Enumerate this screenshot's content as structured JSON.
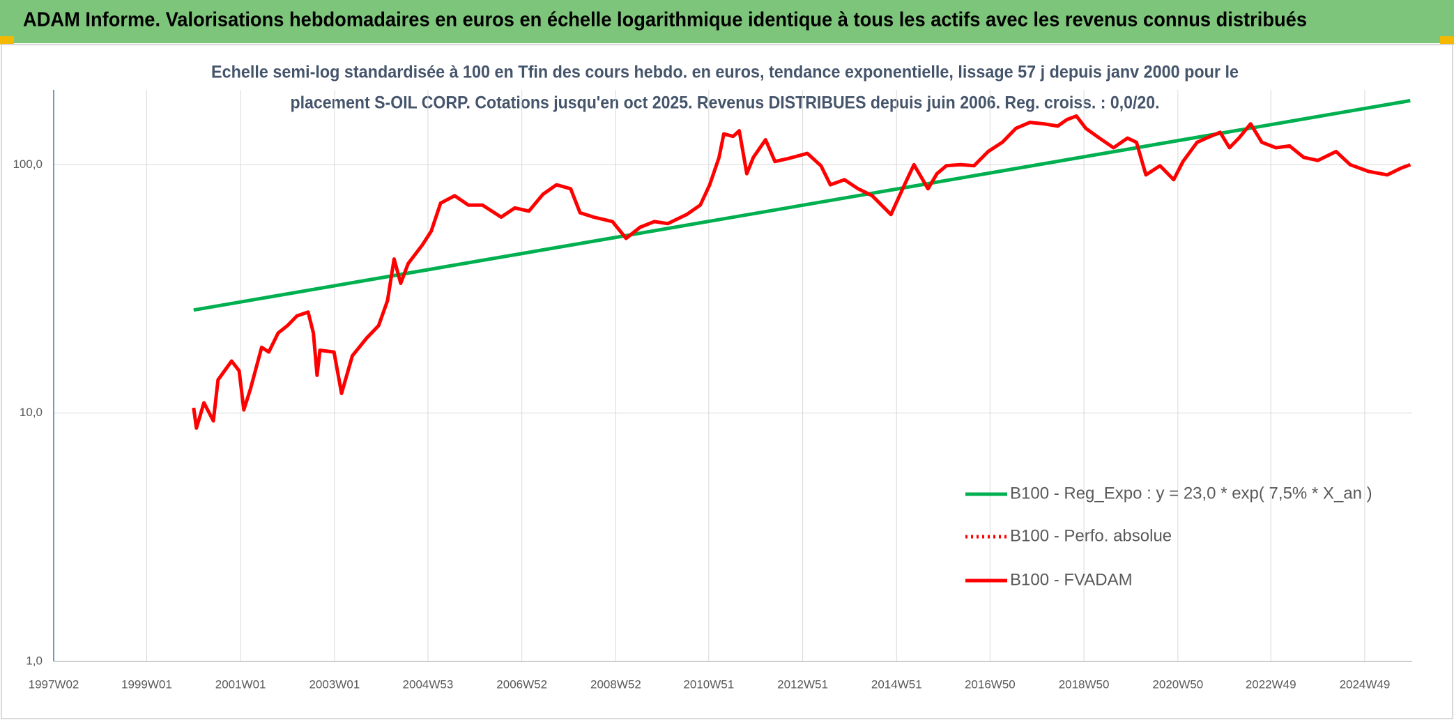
{
  "chart_data": {
    "type": "line",
    "header": "ADAM Informe. Valorisations hebdomadaires en euros en échelle logarithmique identique à tous les actifs avec les revenus connus distribués",
    "subtitle": [
      "Echelle semi-log standardisée à 100 en Tfin des cours hebdo. en euros, tendance exponentielle, lissage 57 j depuis janv 2000 pour le",
      "placement S-OIL CORP. Cotations jusqu'en oct 2025. Revenus DISTRIBUES depuis juin 2006. Reg. croiss. : 0,0/20."
    ],
    "log_y": true,
    "grid": true,
    "legend": "right",
    "xlim": [
      1997.02,
      2025.95
    ],
    "xticks": [
      {
        "value": 1997.02,
        "label": "1997W02"
      },
      {
        "value": 1999.0,
        "label": "1999W01"
      },
      {
        "value": 2001.0,
        "label": "2001W01"
      },
      {
        "value": 2003.0,
        "label": "2003W01"
      },
      {
        "value": 2004.99,
        "label": "2004W53"
      },
      {
        "value": 2006.99,
        "label": "2006W52"
      },
      {
        "value": 2008.99,
        "label": "2008W52"
      },
      {
        "value": 2010.97,
        "label": "2010W51"
      },
      {
        "value": 2012.97,
        "label": "2012W51"
      },
      {
        "value": 2014.97,
        "label": "2014W51"
      },
      {
        "value": 2016.96,
        "label": "2016W50"
      },
      {
        "value": 2018.96,
        "label": "2018W50"
      },
      {
        "value": 2020.96,
        "label": "2020W50"
      },
      {
        "value": 2022.94,
        "label": "2022W49"
      },
      {
        "value": 2024.94,
        "label": "2024W49"
      }
    ],
    "ylim": [
      1,
      200
    ],
    "yticks": [
      {
        "value": 1,
        "label": "1,0"
      },
      {
        "value": 10,
        "label": "10,0"
      },
      {
        "value": 100,
        "label": "100,0"
      }
    ],
    "x": [
      2000.0,
      2000.06,
      2000.22,
      2000.42,
      2000.52,
      2000.81,
      2000.97,
      2001.07,
      2001.21,
      2001.45,
      2001.6,
      2001.8,
      2002.0,
      2002.2,
      2002.44,
      2002.55,
      2002.63,
      2002.69,
      2002.99,
      2003.15,
      2003.38,
      2003.68,
      2003.94,
      2004.13,
      2004.27,
      2004.41,
      2004.57,
      2004.87,
      2005.06,
      2005.26,
      2005.56,
      2005.85,
      2006.15,
      2006.55,
      2006.84,
      2007.14,
      2007.44,
      2007.73,
      2008.03,
      2008.23,
      2008.52,
      2008.92,
      2009.21,
      2009.51,
      2009.81,
      2010.1,
      2010.5,
      2010.79,
      2010.99,
      2011.19,
      2011.29,
      2011.49,
      2011.62,
      2011.78,
      2011.92,
      2012.18,
      2012.38,
      2012.67,
      2013.07,
      2013.36,
      2013.56,
      2013.86,
      2014.15,
      2014.45,
      2014.85,
      2015.14,
      2015.34,
      2015.64,
      2015.83,
      2016.03,
      2016.33,
      2016.62,
      2016.92,
      2017.22,
      2017.51,
      2017.81,
      2018.11,
      2018.4,
      2018.6,
      2018.8,
      2019.0,
      2019.29,
      2019.59,
      2019.89,
      2020.08,
      2020.28,
      2020.58,
      2020.87,
      2021.07,
      2021.37,
      2021.57,
      2021.86,
      2022.06,
      2022.26,
      2022.51,
      2022.75,
      2023.05,
      2023.34,
      2023.64,
      2023.94,
      2024.33,
      2024.63,
      2025.02,
      2025.42,
      2025.72,
      2025.91
    ],
    "series": [
      {
        "name": "B100 - Reg_Expo : y = 23,0 * exp( 7,5% *  X_an )",
        "color": "#00b050",
        "style": "solid",
        "x": [
          2000.0,
          2025.91
        ],
        "values": [
          26,
          181
        ]
      },
      {
        "name": "B100 - Perfo. absolue",
        "color": "#ff0000",
        "style": "dotted",
        "values": [
          10.5,
          8.7,
          11,
          9.3,
          13.6,
          16.2,
          14.8,
          10.3,
          12.5,
          18.4,
          17.6,
          21,
          22.5,
          24.6,
          25.5,
          21,
          14.2,
          17.9,
          17.6,
          12,
          17,
          20,
          22.5,
          28.4,
          41.7,
          33.3,
          40,
          47.5,
          54,
          70,
          75,
          68.8,
          68.8,
          61.5,
          67,
          65,
          76,
          83,
          80,
          64,
          61.5,
          59,
          50.5,
          56,
          59,
          57.9,
          63,
          68.8,
          83,
          107,
          133,
          130,
          137,
          92,
          107,
          126,
          103,
          106,
          111,
          99,
          83,
          87,
          80,
          75,
          63,
          83,
          100,
          80,
          92,
          99,
          100,
          99,
          113,
          123,
          140,
          148,
          146,
          143,
          152,
          157,
          140,
          128,
          117,
          128,
          123,
          91,
          99,
          87,
          103,
          123,
          128,
          135,
          117,
          128,
          146,
          123,
          117,
          119,
          107,
          104,
          113,
          100,
          94,
          91,
          97,
          100
        ]
      },
      {
        "name": "B100 - FVADAM",
        "color": "#ff0000",
        "style": "solid",
        "values": [
          10.5,
          8.7,
          11,
          9.3,
          13.6,
          16.2,
          14.8,
          10.3,
          12.5,
          18.4,
          17.6,
          21,
          22.5,
          24.6,
          25.5,
          21,
          14.2,
          17.9,
          17.6,
          12,
          17,
          20,
          22.5,
          28.4,
          41.7,
          33.3,
          40,
          47.5,
          54,
          70,
          75,
          68.8,
          68.8,
          61.5,
          67,
          65,
          76,
          83,
          80,
          64,
          61.5,
          59,
          50.5,
          56,
          59,
          57.9,
          63,
          68.8,
          83,
          107,
          133,
          130,
          137,
          92,
          107,
          126,
          103,
          106,
          111,
          99,
          83,
          87,
          80,
          75,
          63,
          83,
          100,
          80,
          92,
          99,
          100,
          99,
          113,
          123,
          140,
          148,
          146,
          143,
          152,
          157,
          140,
          128,
          117,
          128,
          123,
          91,
          99,
          87,
          103,
          123,
          128,
          135,
          117,
          128,
          146,
          123,
          117,
          119,
          107,
          104,
          113,
          100,
          94,
          91,
          97,
          100
        ]
      }
    ]
  }
}
